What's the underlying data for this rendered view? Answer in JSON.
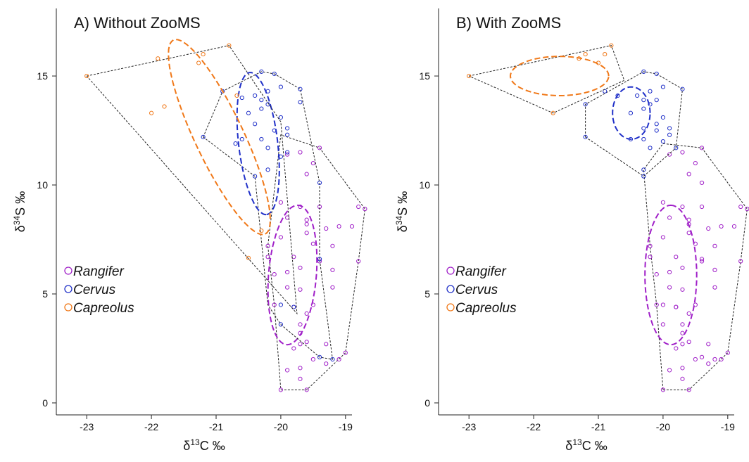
{
  "chart_data": [
    {
      "type": "scatter",
      "title": "A) Without ZooMS",
      "xlabel": [
        "δ",
        "13",
        "C ‰"
      ],
      "ylabel": [
        "δ",
        "34",
        "S ‰"
      ],
      "xlim": [
        -23.47,
        -18.9
      ],
      "ylim": [
        -0.55,
        18.1
      ],
      "xticks": [
        -23,
        -22,
        -21,
        -20,
        -19
      ],
      "yticks": [
        0,
        5,
        10,
        15
      ],
      "legend": "left",
      "series": [
        {
          "name": "Rangifer",
          "color": "#a020c8",
          "x": [
            -20,
            -19.6,
            -19.9,
            -19.7,
            -19.7,
            -19.5,
            -19.3,
            -19.1,
            -19,
            -19.8,
            -19.7,
            -19.6,
            -19.3,
            -19.7,
            -19.7,
            -19.6,
            -19.8,
            -19.5,
            -20.1,
            -19.9,
            -19.7,
            -19.2,
            -20.1,
            -19.9,
            -19.7,
            -19.2,
            -19.4,
            -20.2,
            -19.8,
            -19.5,
            -20.2,
            -19.2,
            -20,
            -19.6,
            -19.3,
            -19.9,
            -19.6,
            -19.6,
            -19.7,
            -20,
            -19.1,
            -18.9,
            -18.8,
            -18.7,
            -18.8,
            -19.4,
            -19.6,
            -19.5,
            -19.4,
            -19.7,
            -19.9
          ],
          "y": [
            0.6,
            0.6,
            1.5,
            1.6,
            1.1,
            2,
            1.8,
            2,
            2.3,
            2.5,
            2.7,
            2.8,
            2.7,
            3.2,
            3.6,
            4.1,
            4.4,
            4.5,
            4.5,
            5.3,
            5.2,
            5.3,
            5.9,
            6,
            6.2,
            6.1,
            6.5,
            6.7,
            6.7,
            7.3,
            7.2,
            7.2,
            7.6,
            7.8,
            8,
            8.5,
            8.4,
            8.2,
            9,
            9.2,
            8.1,
            8.1,
            9,
            8.9,
            6.5,
            9,
            10.5,
            11,
            11.7,
            11.5,
            11.4
          ],
          "hull": {
            "x": [
              -20,
              -19.6,
              -19,
              -18.8,
              -18.7,
              -19.4,
              -20,
              -20.2,
              -20.1,
              -20
            ],
            "y": [
              0.6,
              0.6,
              2.3,
              6.5,
              8.9,
              11.7,
              12.3,
              7.2,
              4.5,
              0.6
            ]
          },
          "ellipse": {
            "center": [
              -19.82,
              5.87
            ],
            "axis_a": [
              0.08,
              3.2
            ],
            "axis_b": [
              0.37,
              0
            ]
          }
        },
        {
          "name": "Cervus",
          "color": "#2030c8",
          "x": [
            -20.3,
            -20.1,
            -20,
            -20.2,
            -20.4,
            -20.3,
            -20.6,
            -20.3,
            -20.5,
            -20.2,
            -20,
            -19.7,
            -19.7,
            -20.4,
            -20.6,
            -20.7,
            -20.3,
            -20.1,
            -19.9,
            -19.9,
            -20.2,
            -20,
            -19.9,
            -20.2,
            -20.4,
            -21.2,
            -20.9,
            -19.4,
            -20,
            -20,
            -19.8,
            -19.4,
            -19.2,
            -19.4
          ],
          "y": [
            15.2,
            15.1,
            14.5,
            14.3,
            14.1,
            13.9,
            14,
            13.5,
            13.3,
            13.7,
            13.1,
            14.4,
            13.8,
            12.8,
            12.1,
            11.9,
            12.1,
            12.5,
            12.6,
            12.3,
            11.7,
            11.3,
            11.5,
            10.7,
            10.4,
            12.2,
            14.3,
            6.6,
            4.5,
            3.6,
            4.4,
            2.1,
            2,
            10.1
          ],
          "hull": {
            "x": [
              -21.2,
              -20.9,
              -20.3,
              -20.1,
              -19.7,
              -19.4,
              -19.4,
              -19.2,
              -19.4,
              -20,
              -20.2,
              -20.4,
              -21.2
            ],
            "y": [
              12.2,
              14.3,
              15.2,
              15.1,
              14.4,
              10.1,
              6.6,
              2,
              2.1,
              3.6,
              4.5,
              10.4,
              12.2
            ]
          },
          "ellipse": {
            "center": [
              -20.35,
              11.9
            ],
            "axis_a": [
              0.13,
              -3.26
            ],
            "axis_b": [
              0.3,
              0.1
            ]
          }
        },
        {
          "name": "Capreolus",
          "color": "#f07818",
          "x": [
            -23,
            -22,
            -21.9,
            -21.8,
            -21.27,
            -21.2,
            -20.8,
            -20.68,
            -20.5,
            -20.3
          ],
          "y": [
            15,
            13.3,
            15.8,
            13.6,
            15.6,
            16,
            16.4,
            14.1,
            6.65,
            7.9
          ],
          "hull": {
            "x": [
              -23,
              -20.8,
              -20,
              -19.75,
              -23
            ],
            "y": [
              15,
              16.4,
              12.9,
              4.1,
              15
            ]
          },
          "ellipse": {
            "center": [
              -20.95,
              12.2
            ],
            "axis_a": [
              0.71,
              -4.45
            ],
            "axis_b": [
              0.34,
              0.48
            ]
          }
        }
      ]
    },
    {
      "type": "scatter",
      "title": "B) With ZooMS",
      "xlabel": [
        "δ",
        "13",
        "C ‰"
      ],
      "ylabel": [
        "δ",
        "34",
        "S ‰"
      ],
      "xlim": [
        -23.47,
        -18.9
      ],
      "ylim": [
        -0.55,
        18.1
      ],
      "xticks": [
        -23,
        -22,
        -21,
        -20,
        -19
      ],
      "yticks": [
        0,
        5,
        10,
        15
      ],
      "legend": "left",
      "series": [
        {
          "name": "Rangifer",
          "color": "#a020c8",
          "x": [
            -20,
            -19.6,
            -19.9,
            -19.7,
            -19.7,
            -19.5,
            -19.3,
            -19.1,
            -19,
            -19.8,
            -19.7,
            -19.6,
            -19.3,
            -19.7,
            -19.7,
            -19.6,
            -19.8,
            -19.5,
            -20.1,
            -19.9,
            -19.7,
            -19.2,
            -20.1,
            -19.9,
            -19.7,
            -19.2,
            -19.4,
            -20.2,
            -19.8,
            -19.5,
            -20.2,
            -19.2,
            -20,
            -19.6,
            -19.3,
            -19.9,
            -19.6,
            -19.6,
            -19.7,
            -20,
            -19.1,
            -18.9,
            -18.8,
            -18.7,
            -18.8,
            -19.4,
            -19.6,
            -19.5,
            -19.4,
            -19.7,
            -19.9,
            -20,
            -20,
            -19.8,
            -19.4,
            -19.2,
            -19.4,
            -19.4
          ],
          "y": [
            0.6,
            0.6,
            1.5,
            1.6,
            1.1,
            2,
            1.8,
            2,
            2.3,
            2.5,
            2.7,
            2.8,
            2.7,
            3.2,
            3.6,
            4.1,
            4.4,
            4.5,
            4.5,
            5.3,
            5.2,
            5.3,
            5.9,
            6,
            6.2,
            6.1,
            6.5,
            6.7,
            6.7,
            7.3,
            7.2,
            7.2,
            7.6,
            7.8,
            8,
            8.5,
            8.4,
            8.2,
            9,
            9.2,
            8.1,
            8.1,
            9,
            8.9,
            6.5,
            9,
            10.5,
            11,
            11.7,
            11.5,
            11.4,
            4.5,
            3.6,
            4.4,
            2.1,
            2,
            6.6,
            10.1
          ],
          "hull": {
            "x": [
              -20,
              -19.6,
              -19,
              -18.8,
              -18.7,
              -19.4,
              -20,
              -20.3,
              -20.2,
              -20.1,
              -20
            ],
            "y": [
              0.6,
              0.6,
              2.3,
              6.5,
              8.9,
              11.7,
              11.9,
              10.7,
              7.2,
              4.5,
              0.6
            ]
          },
          "ellipse": {
            "center": [
              -19.88,
              5.87
            ],
            "axis_a": [
              0,
              3.2
            ],
            "axis_b": [
              0.4,
              0
            ]
          }
        },
        {
          "name": "Cervus",
          "color": "#2030c8",
          "x": [
            -20.3,
            -20.1,
            -20,
            -20.2,
            -20.4,
            -20.3,
            -20.1,
            -20.3,
            -20.5,
            -20.2,
            -20,
            -19.7,
            -20.1,
            -20.3,
            -20.5,
            -20.3,
            -20.1,
            -19.9,
            -19.9,
            -20.2,
            -19.8,
            -21.2,
            -20.9,
            -21.2,
            -20.3,
            -20.3,
            -20,
            -20.7
          ],
          "y": [
            15.2,
            15.1,
            14.5,
            14.3,
            14.1,
            13.9,
            13.9,
            13.5,
            13.3,
            13.7,
            13.1,
            14.4,
            12.8,
            12.6,
            12.1,
            12.1,
            12.5,
            12.6,
            12.3,
            11.7,
            11.7,
            12.2,
            14.3,
            13.7,
            10.4,
            10.7,
            12,
            14.1
          ],
          "hull": {
            "x": [
              -21.2,
              -21.2,
              -20.3,
              -20.1,
              -19.7,
              -19.8,
              -20.3,
              -21.2
            ],
            "y": [
              12.2,
              13.7,
              15.2,
              15.1,
              14.4,
              11.7,
              10.4,
              12.2
            ]
          },
          "ellipse": {
            "center": [
              -20.49,
              13.3
            ],
            "axis_a": [
              0.29,
              0
            ],
            "axis_b": [
              0,
              1.2
            ]
          }
        },
        {
          "name": "Capreolus",
          "color": "#f07818",
          "x": [
            -23,
            -21.7,
            -21.3,
            -21,
            -20.9,
            -20.8,
            -21.2
          ],
          "y": [
            15,
            13.3,
            15.8,
            15.6,
            16,
            16.4,
            16
          ],
          "hull": {
            "x": [
              -23,
              -20.8,
              -20.6,
              -21.7,
              -23
            ],
            "y": [
              15,
              16.4,
              14.8,
              13.3,
              15
            ]
          },
          "ellipse": {
            "center": [
              -21.6,
              15.0
            ],
            "axis_a": [
              0.76,
              0
            ],
            "axis_b": [
              0,
              0.9
            ]
          }
        }
      ]
    }
  ]
}
